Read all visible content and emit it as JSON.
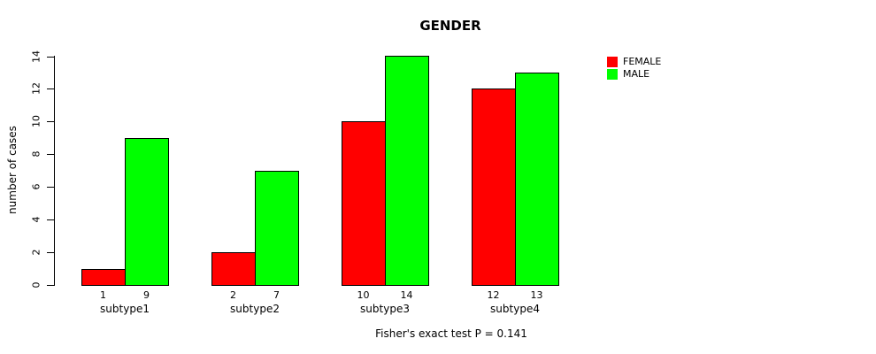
{
  "chart_data": {
    "type": "bar",
    "title": "GENDER",
    "ylabel": "number of cases",
    "xlabel": "",
    "categories": [
      "subtype1",
      "subtype2",
      "subtype3",
      "subtype4"
    ],
    "series": [
      {
        "name": "FEMALE",
        "color": "#ff0000",
        "values": [
          1,
          2,
          10,
          12
        ]
      },
      {
        "name": "MALE",
        "color": "#00ff00",
        "values": [
          9,
          7,
          14,
          13
        ]
      }
    ],
    "ylim": [
      0,
      14
    ],
    "yticks": [
      0,
      2,
      4,
      6,
      8,
      10,
      12,
      14
    ],
    "grid": false,
    "legend_position": "right",
    "bar_value_labels_shown": true,
    "caption": "Fisher's exact test P = 0.141"
  },
  "colors": {
    "axis": "#000000",
    "bar_border": "#000000",
    "background": "#ffffff"
  }
}
